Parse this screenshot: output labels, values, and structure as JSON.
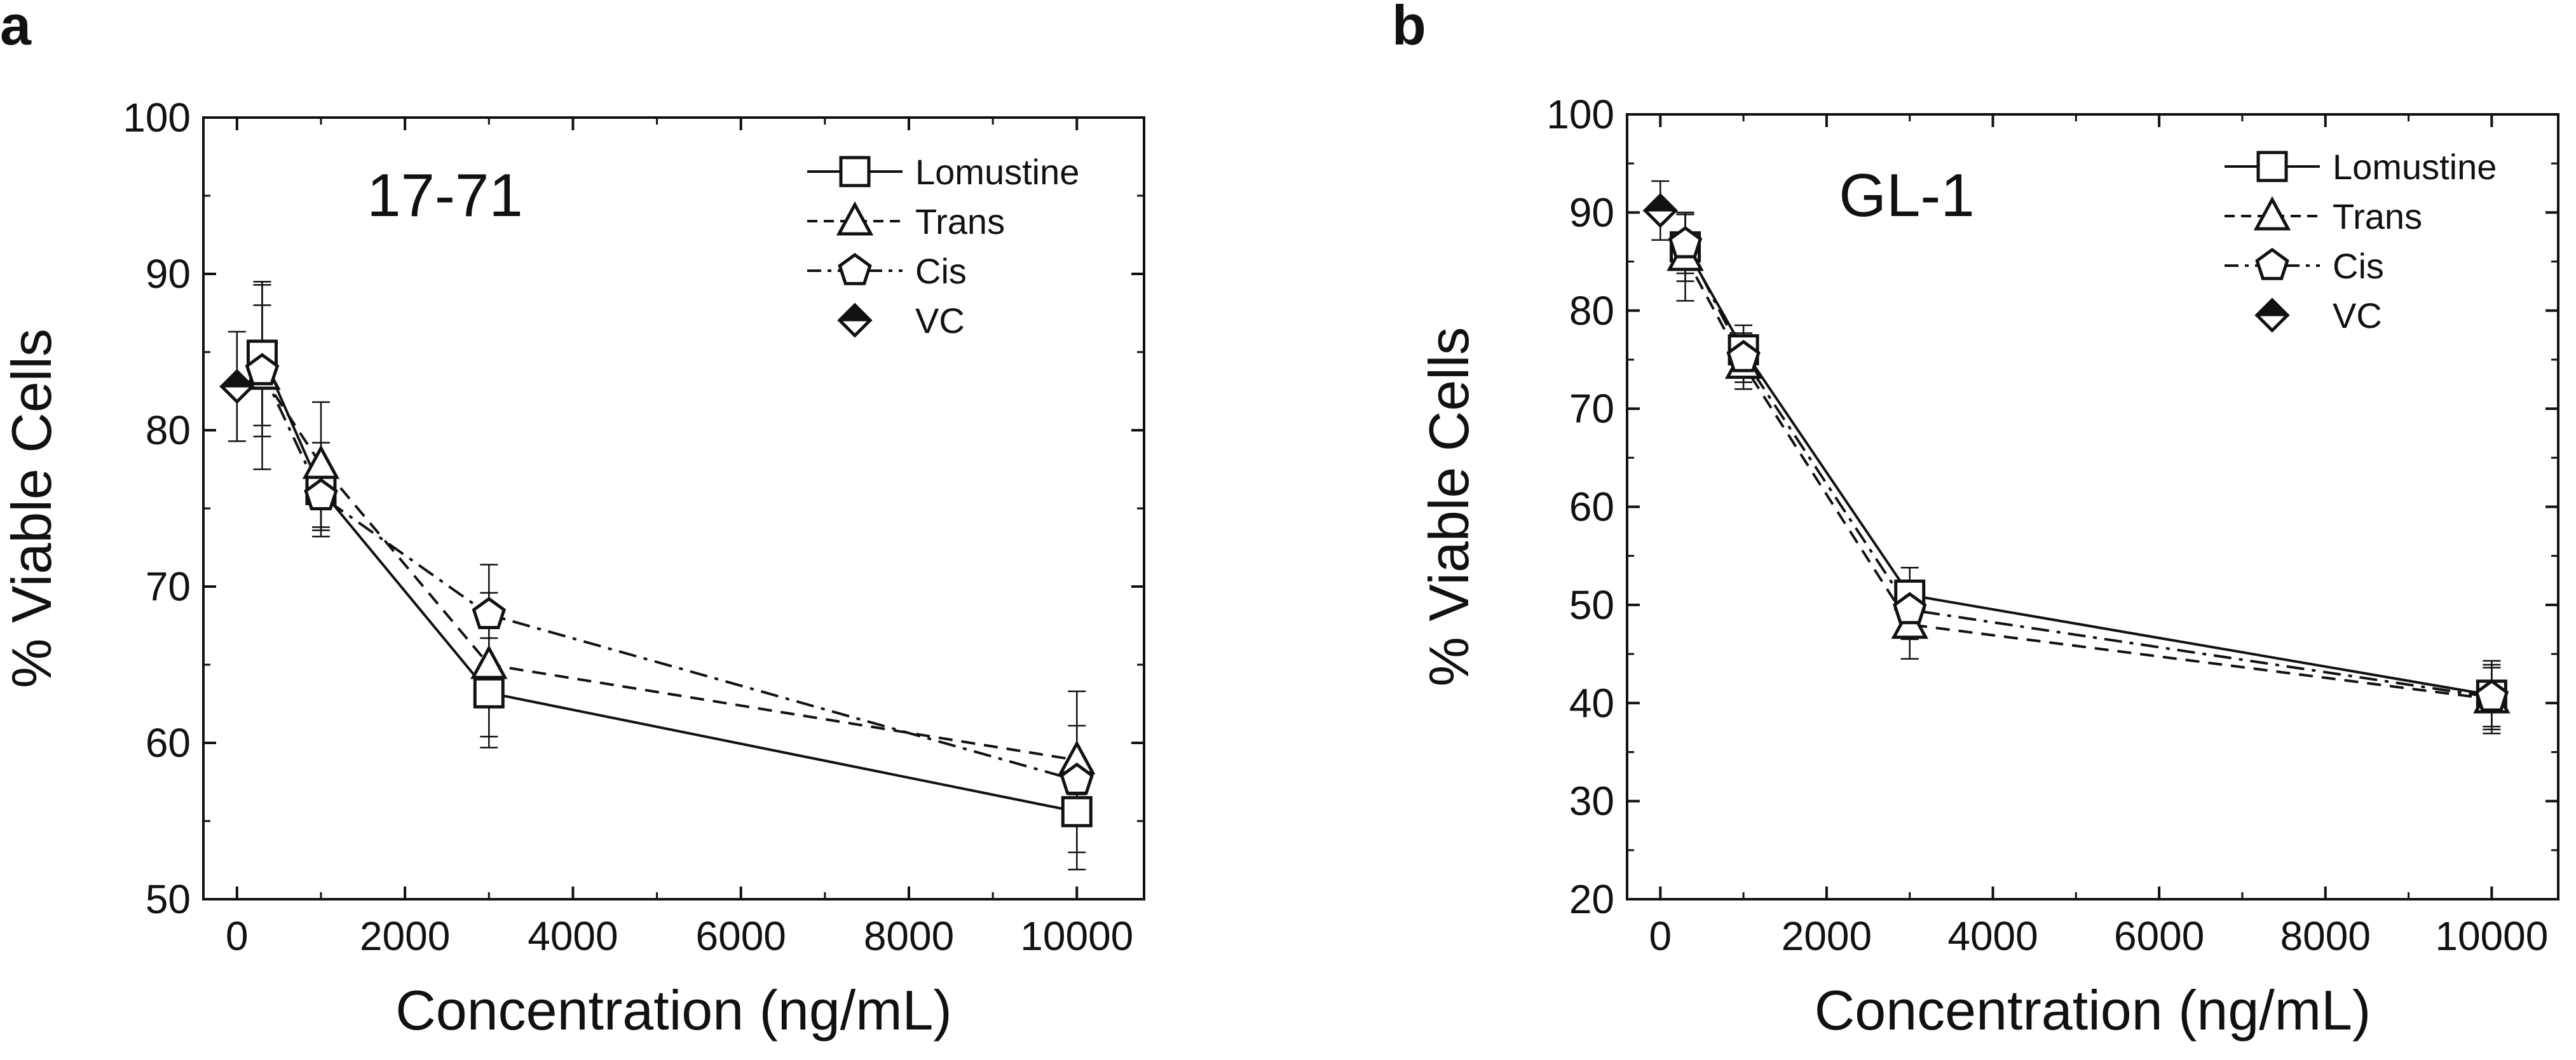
{
  "chart_data": [
    {
      "type": "line",
      "panel_letter": "a",
      "title": "17-71",
      "xlabel": "Concentration (ng/mL)",
      "ylabel": "% Viable Cells",
      "xlim": [
        -400,
        10800
      ],
      "ylim": [
        50,
        100
      ],
      "xticks": [
        0,
        2000,
        4000,
        6000,
        8000,
        10000
      ],
      "yticks": [
        50,
        60,
        70,
        80,
        90,
        100
      ],
      "x": [
        300,
        1000,
        3000,
        10000
      ],
      "legend_position": "top-right",
      "series": [
        {
          "name": "Lomustine",
          "marker": "square",
          "line": "solid",
          "values": [
            84.8,
            76.2,
            63.2,
            55.6
          ],
          "errors": [
            4.5,
            3.0,
            3.5,
            2.6
          ]
        },
        {
          "name": "Trans",
          "marker": "triangle",
          "line": "dashed",
          "values": [
            83.5,
            77.8,
            65.0,
            58.9
          ],
          "errors": [
            6.0,
            4.0,
            4.6,
            2.2
          ]
        },
        {
          "name": "Cis",
          "marker": "pentagon",
          "line": "dashdot",
          "values": [
            83.8,
            75.8,
            68.2,
            57.6
          ],
          "errors": [
            4.2,
            2.2,
            3.2,
            5.7
          ]
        }
      ],
      "vc": {
        "name": "VC",
        "x": 0,
        "value": 82.8,
        "error": 3.5
      }
    },
    {
      "type": "line",
      "panel_letter": "b",
      "title": "GL-1",
      "xlabel": "Concentration (ng/mL)",
      "ylabel": "% Viable Cells",
      "xlim": [
        -400,
        10800
      ],
      "ylim": [
        20,
        100
      ],
      "xticks": [
        0,
        2000,
        4000,
        6000,
        8000,
        10000
      ],
      "yticks": [
        20,
        30,
        40,
        50,
        60,
        70,
        80,
        90,
        100
      ],
      "x": [
        300,
        1000,
        3000,
        10000
      ],
      "legend_position": "top-right",
      "series": [
        {
          "name": "Lomustine",
          "marker": "square",
          "line": "solid",
          "values": [
            86.5,
            76.0,
            51.0,
            40.8
          ],
          "errors": [
            3.5,
            2.5,
            2.8,
            3.5
          ]
        },
        {
          "name": "Trans",
          "marker": "triangle",
          "line": "dashed",
          "values": [
            85.5,
            74.5,
            48.0,
            40.4
          ],
          "errors": [
            4.5,
            2.5,
            3.5,
            3.5
          ]
        },
        {
          "name": "Cis",
          "marker": "pentagon",
          "line": "dashdot",
          "values": [
            86.8,
            75.2,
            49.5,
            40.6
          ],
          "errors": [
            3.0,
            2.5,
            3.0,
            3.0
          ]
        }
      ],
      "vc": {
        "name": "VC",
        "x": 0,
        "value": 90.2,
        "error": 3.0
      }
    }
  ]
}
